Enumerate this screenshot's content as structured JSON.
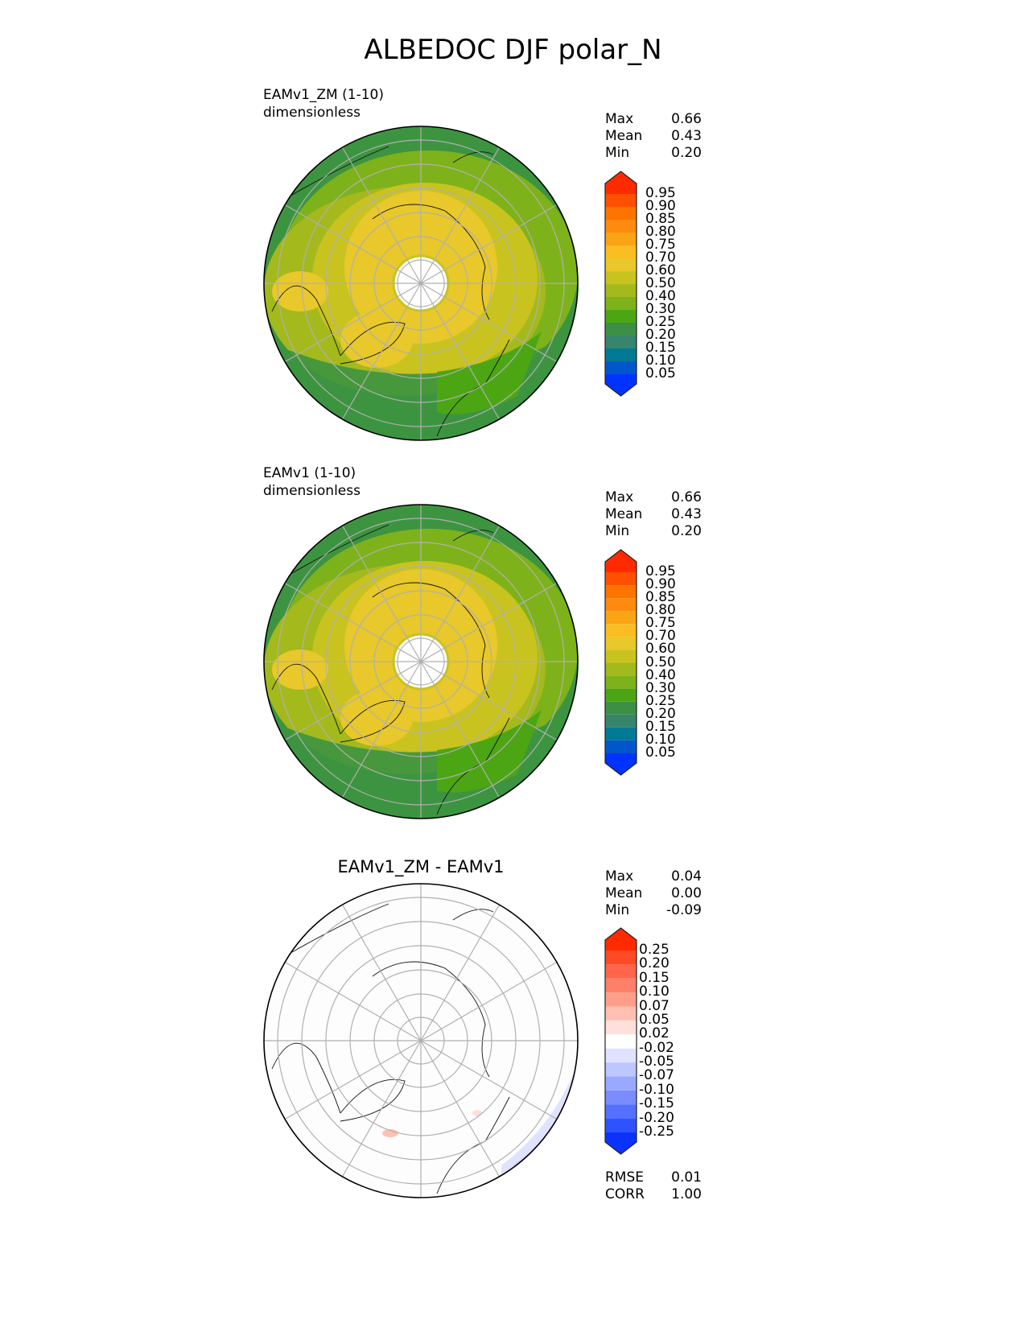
{
  "title": "ALBEDOC DJF polar_N",
  "panels": [
    {
      "name": "test",
      "label": "EAMv1_ZM (1-10)",
      "units": "dimensionless",
      "stats": {
        "max_label": "Max",
        "max": "0.66",
        "mean_label": "Mean",
        "mean": "0.43",
        "min_label": "Min",
        "min": "0.20"
      },
      "levels": [
        "0.95",
        "0.90",
        "0.85",
        "0.80",
        "0.75",
        "0.70",
        "0.60",
        "0.50",
        "0.40",
        "0.30",
        "0.25",
        "0.20",
        "0.15",
        "0.10",
        "0.05"
      ]
    },
    {
      "name": "reference",
      "label": "EAMv1 (1-10)",
      "units": "dimensionless",
      "stats": {
        "max_label": "Max",
        "max": "0.66",
        "mean_label": "Mean",
        "mean": "0.43",
        "min_label": "Min",
        "min": "0.20"
      },
      "levels": [
        "0.95",
        "0.90",
        "0.85",
        "0.80",
        "0.75",
        "0.70",
        "0.60",
        "0.50",
        "0.40",
        "0.30",
        "0.25",
        "0.20",
        "0.15",
        "0.10",
        "0.05"
      ]
    },
    {
      "name": "difference",
      "title": "EAMv1_ZM - EAMv1",
      "stats": {
        "max_label": "Max",
        "max": "0.04",
        "mean_label": "Mean",
        "mean": "0.00",
        "min_label": "Min",
        "min": "-0.09"
      },
      "levels": [
        "0.25",
        "0.20",
        "0.15",
        "0.10",
        "0.07",
        "0.05",
        "0.02",
        "-0.02",
        "-0.05",
        "-0.07",
        "-0.10",
        "-0.15",
        "-0.20",
        "-0.25"
      ],
      "metrics": {
        "rmse_label": "RMSE",
        "rmse": "0.01",
        "corr_label": "CORR",
        "corr": "1.00"
      }
    }
  ],
  "colormaps": {
    "albedo": [
      "#ff2a00",
      "#ff4f00",
      "#ff7300",
      "#ff8a10",
      "#fba416",
      "#fbbd22",
      "#e8c82a",
      "#c9c320",
      "#a4b91c",
      "#7eb21a",
      "#4ca614",
      "#3d8f45",
      "#37856d",
      "#007a95",
      "#0057cc",
      "#0033ff"
    ],
    "diff": [
      "#ff2a00",
      "#ff4a26",
      "#ff654a",
      "#ff8068",
      "#ff9f8a",
      "#ffc0b2",
      "#ffe0da",
      "#ffffff",
      "#dfe3ff",
      "#bcc6ff",
      "#99a9ff",
      "#7a8cff",
      "#5470ff",
      "#2f52ff",
      "#0a33ff"
    ]
  },
  "chart_data": {
    "type": "heatmap",
    "projection": "north polar stereographic",
    "variable": "ALBEDOC",
    "season": "DJF"
  }
}
